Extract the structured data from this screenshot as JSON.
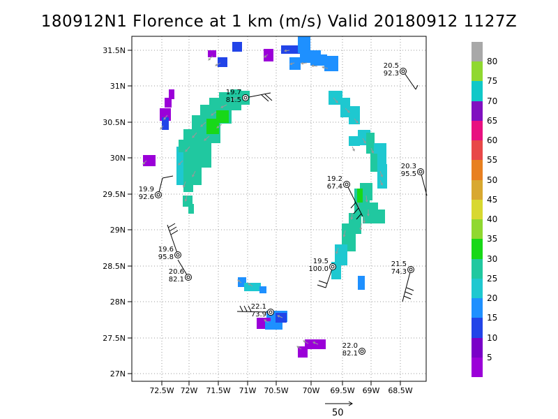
{
  "title": "180912N1 Florence at 1 km (m/s) Valid 20180912  1127Z",
  "lat_ticks": [
    "31.5N",
    "31N",
    "30.5N",
    "30N",
    "29.5N",
    "29N",
    "28.5N",
    "28N",
    "27.5N",
    "27N"
  ],
  "lon_ticks": [
    "72.5W",
    "72W",
    "71.5W",
    "71W",
    "70.5W",
    "70W",
    "69.5W",
    "69W",
    "68.5W"
  ],
  "colorbar": {
    "labels": [
      "5",
      "10",
      "15",
      "20",
      "25",
      "30",
      "35",
      "40",
      "45",
      "50",
      "55",
      "60",
      "65",
      "70",
      "75",
      "80"
    ],
    "colors": [
      "#9b00d8",
      "#7a00c8",
      "#2244e8",
      "#1e90ff",
      "#1ec8d0",
      "#20c8a0",
      "#18d818",
      "#90d830",
      "#d8d830",
      "#d8a830",
      "#e88020",
      "#e84848",
      "#e81080",
      "#8010c0",
      "#10c8c8",
      "#90d830",
      "#a8a8a8"
    ]
  },
  "vector_scale_label": "50",
  "stations": [
    {
      "speed": "19.7",
      "pressure": "81.5"
    },
    {
      "speed": "20.5",
      "pressure": "92.3"
    },
    {
      "speed": "20.3",
      "pressure": "95.5"
    },
    {
      "speed": "19.9",
      "pressure": "92.6"
    },
    {
      "speed": "19.2",
      "pressure": "67.4"
    },
    {
      "speed": "19.6",
      "pressure": "95.8"
    },
    {
      "speed": "20.6",
      "pressure": "82.1"
    },
    {
      "speed": "19.5",
      "pressure": "100.0"
    },
    {
      "speed": "21.5",
      "pressure": "74.3"
    },
    {
      "speed": "22.1",
      "pressure": "73.9"
    },
    {
      "speed": "22.0",
      "pressure": "82.1"
    }
  ],
  "colors": {
    "teal": "#20c8a0",
    "cyan": "#1ec8d0",
    "green": "#18d818",
    "blue": "#1e90ff",
    "dblue": "#2244e8",
    "purple": "#9b00d8",
    "vector": "#999999",
    "grid": "#999999"
  }
}
